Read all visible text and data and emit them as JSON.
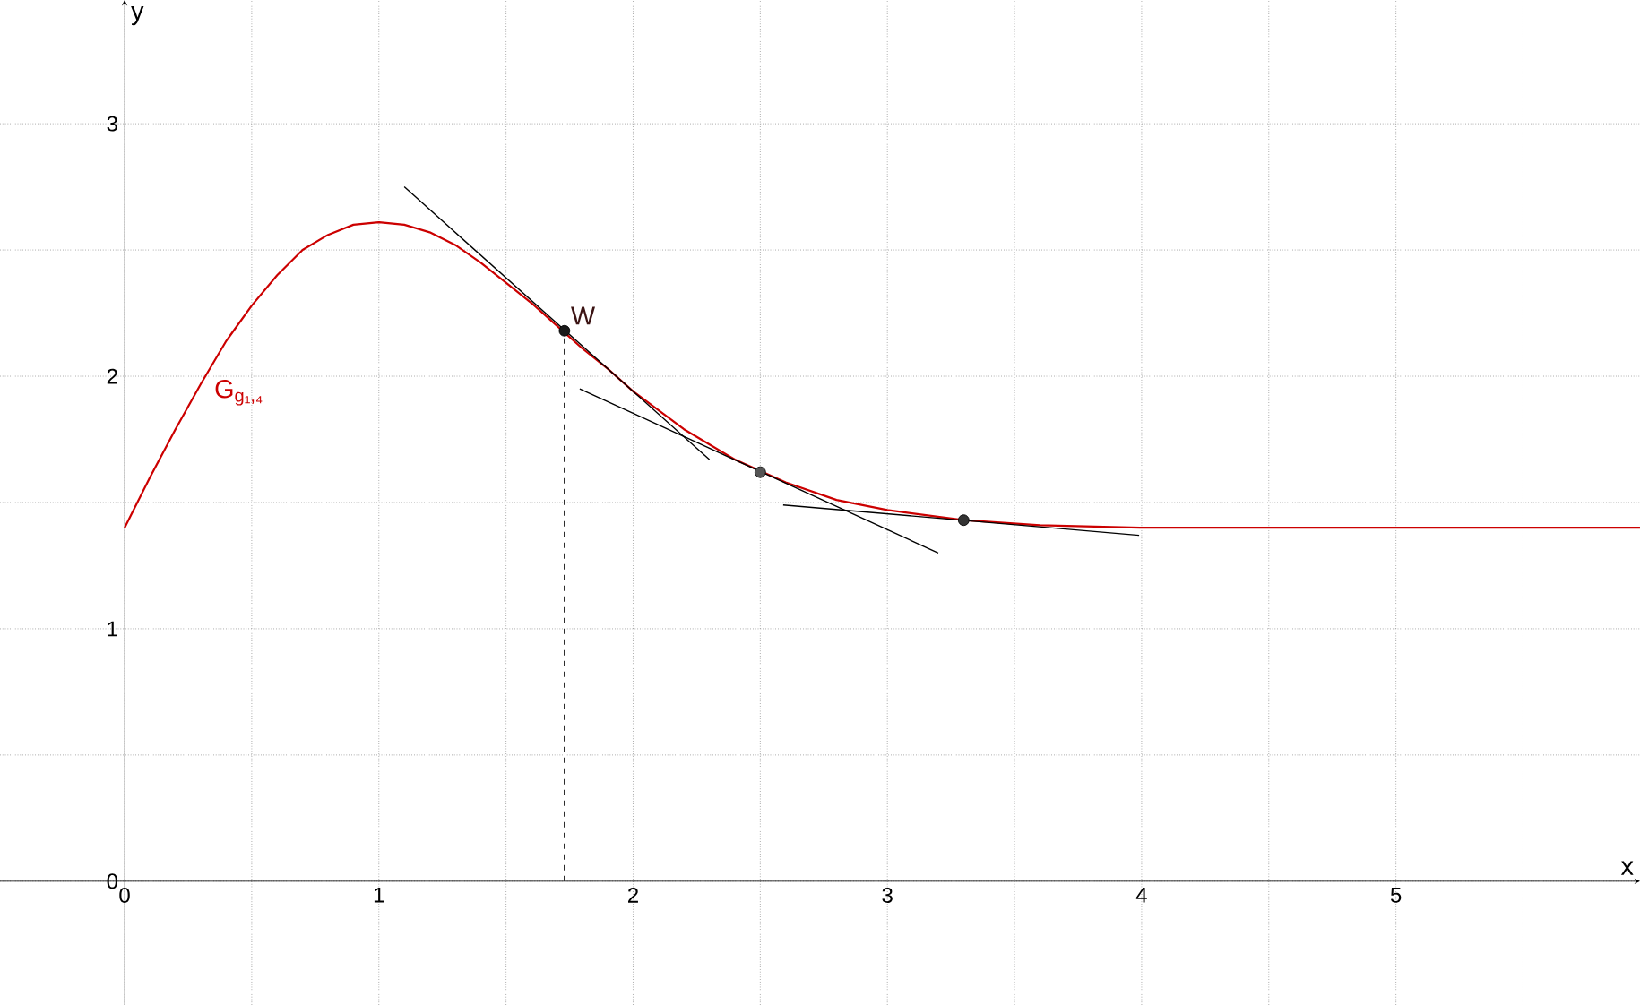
{
  "chart_data": {
    "type": "line",
    "xlabel": "x",
    "ylabel": "y",
    "xlim": [
      -0.49,
      5.96
    ],
    "ylim": [
      -0.49,
      3.49
    ],
    "xticks": [
      0,
      {
        "value": 0.5,
        "label": null
      },
      1,
      {
        "value": 1.5,
        "label": null
      },
      2,
      {
        "value": 2.5,
        "label": null
      },
      3,
      {
        "value": 3.5,
        "label": null
      },
      4,
      {
        "value": 4.5,
        "label": null
      },
      5,
      {
        "value": 5.5,
        "label": null
      }
    ],
    "yticks": [
      0,
      {
        "value": 0.5,
        "label": null
      },
      1,
      {
        "value": 1.5,
        "label": null
      },
      2,
      {
        "value": 2.5,
        "label": null
      },
      3
    ],
    "grid": true,
    "series": [
      {
        "name": "G$_{g₁,₄}$",
        "color": "#cc0000",
        "x": [
          0,
          0.1,
          0.2,
          0.3,
          0.4,
          0.5,
          0.6,
          0.7,
          0.8,
          0.9,
          1.0,
          1.1,
          1.2,
          1.3,
          1.4,
          1.5,
          1.6,
          1.7,
          1.8,
          1.9,
          2.0,
          2.2,
          2.4,
          2.6,
          2.8,
          3.0,
          3.3,
          3.6,
          4.0,
          4.5,
          5.0,
          5.96
        ],
        "values": [
          1.4,
          1.6,
          1.79,
          1.97,
          2.14,
          2.28,
          2.4,
          2.5,
          2.56,
          2.6,
          2.61,
          2.6,
          2.57,
          2.52,
          2.45,
          2.37,
          2.29,
          2.2,
          2.11,
          2.03,
          1.94,
          1.79,
          1.67,
          1.58,
          1.51,
          1.47,
          1.43,
          1.41,
          1.4,
          1.4,
          1.4,
          1.4
        ]
      },
      {
        "color": "#000000",
        "x": [
          1.1,
          2.3
        ],
        "values": [
          2.75,
          1.67
        ]
      },
      {
        "color": "#000000",
        "x": [
          1.79,
          3.2
        ],
        "values": [
          1.95,
          1.3
        ]
      },
      {
        "color": "#000000",
        "x": [
          2.59,
          3.99
        ],
        "values": [
          1.49,
          1.37
        ]
      },
      {
        "color": "#000000",
        "x": [
          1.73,
          1.73
        ],
        "values": [
          0,
          2.18
        ],
        "line_style": "dashed"
      },
      {
        "type": "scatter",
        "marker": "circle",
        "x": [
          1.73,
          2.5,
          3.3
        ],
        "values": [
          2.18,
          1.62,
          1.43
        ],
        "colors": [
          "#1a1a1a",
          "#555555",
          "#333333"
        ]
      }
    ],
    "annotations": [
      {
        "text": "W",
        "x": 1.73,
        "y": 2.18
      }
    ]
  }
}
